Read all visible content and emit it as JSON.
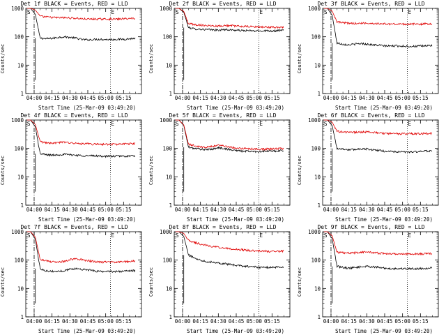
{
  "colors": {
    "events": "#000000",
    "lld": "#e00000",
    "axes": "#000000"
  },
  "common": {
    "ylabel": "Counts/sec",
    "xlabel": "Start Time (25-Mar-09 03:49:20)",
    "xticks": [
      "04:00",
      "04:15",
      "04:30",
      "04:45",
      "05:00",
      "05:15"
    ],
    "yticks": [
      "1",
      "10",
      "100",
      "1000"
    ],
    "marker_S": "S",
    "marker_E": "E"
  },
  "chart_data": [
    {
      "type": "line",
      "title": "Det 1f BLACK = Events, RED = LLD",
      "xlabel": "Start Time (25-Mar-09 03:49:20)",
      "ylabel": "Counts/sec",
      "xlim_minutes": [
        -7,
        90
      ],
      "ylim": [
        1,
        1000
      ],
      "yscale": "log",
      "x_minutes": [
        0,
        5,
        10,
        15,
        20,
        25,
        30,
        35,
        40,
        45,
        50,
        55,
        60,
        65,
        70,
        75,
        80,
        85
      ],
      "series": [
        {
          "name": "Events",
          "values": [
            1000,
            90,
            85,
            88,
            95,
            100,
            95,
            90,
            80,
            78,
            80,
            82,
            80,
            80,
            82,
            82,
            85,
            88
          ]
        },
        {
          "name": "LLD",
          "values": [
            1000,
            520,
            500,
            480,
            470,
            470,
            460,
            450,
            430,
            420,
            420,
            420,
            420,
            420,
            420,
            430,
            440,
            450
          ]
        }
      ],
      "start_minute": 0,
      "end_minute": 64
    },
    {
      "type": "line",
      "title": "Det 2f BLACK = Events, RED = LLD",
      "xlabel": "Start Time (25-Mar-09 03:49:20)",
      "ylabel": "Counts/sec",
      "xlim_minutes": [
        -7,
        90
      ],
      "ylim": [
        1,
        1000
      ],
      "yscale": "log",
      "x_minutes": [
        0,
        5,
        10,
        15,
        20,
        25,
        30,
        35,
        40,
        45,
        50,
        55,
        60,
        65,
        70,
        75,
        80,
        85
      ],
      "series": [
        {
          "name": "Events",
          "values": [
            1000,
            210,
            190,
            185,
            180,
            175,
            170,
            180,
            175,
            170,
            165,
            165,
            160,
            160,
            165,
            160,
            165,
            170
          ]
        },
        {
          "name": "LLD",
          "values": [
            1000,
            290,
            270,
            260,
            250,
            245,
            240,
            250,
            245,
            240,
            230,
            230,
            225,
            220,
            220,
            215,
            215,
            220
          ]
        }
      ],
      "start_minute": 0,
      "end_minute": 64
    },
    {
      "type": "line",
      "title": "Det 3f BLACK = Events, RED = LLD",
      "xlabel": "Start Time (25-Mar-09 03:49:20)",
      "ylabel": "Counts/sec",
      "xlim_minutes": [
        -7,
        90
      ],
      "ylim": [
        1,
        1000
      ],
      "yscale": "log",
      "x_minutes": [
        0,
        5,
        10,
        15,
        20,
        25,
        30,
        35,
        40,
        45,
        50,
        55,
        60,
        65,
        70,
        75,
        80,
        85
      ],
      "series": [
        {
          "name": "Events",
          "values": [
            1000,
            60,
            55,
            52,
            55,
            58,
            55,
            52,
            50,
            48,
            47,
            48,
            47,
            46,
            46,
            47,
            48,
            50
          ]
        },
        {
          "name": "LLD",
          "values": [
            1000,
            330,
            310,
            300,
            295,
            300,
            300,
            295,
            290,
            285,
            280,
            280,
            280,
            280,
            280,
            280,
            285,
            290
          ]
        }
      ],
      "start_minute": 0,
      "end_minute": 64
    },
    {
      "type": "line",
      "title": "Det 4f BLACK = Events, RED = LLD",
      "xlabel": "Start Time (25-Mar-09 03:49:20)",
      "ylabel": "Counts/sec",
      "xlim_minutes": [
        -7,
        90
      ],
      "ylim": [
        1,
        1000
      ],
      "yscale": "log",
      "x_minutes": [
        0,
        5,
        10,
        15,
        20,
        25,
        30,
        35,
        40,
        45,
        50,
        55,
        60,
        65,
        70,
        75,
        80,
        85
      ],
      "series": [
        {
          "name": "Events",
          "values": [
            1000,
            65,
            60,
            58,
            60,
            62,
            60,
            58,
            56,
            55,
            55,
            54,
            53,
            53,
            54,
            53,
            54,
            55
          ]
        },
        {
          "name": "LLD",
          "values": [
            1000,
            170,
            160,
            150,
            160,
            165,
            160,
            150,
            145,
            145,
            140,
            140,
            140,
            140,
            140,
            145,
            145,
            150
          ]
        }
      ],
      "start_minute": 0,
      "end_minute": 64
    },
    {
      "type": "line",
      "title": "Det 5f BLACK = Events, RED = LLD",
      "xlabel": "Start Time (25-Mar-09 03:49:20)",
      "ylabel": "Counts/sec",
      "xlim_minutes": [
        -7,
        90
      ],
      "ylim": [
        1,
        1000
      ],
      "yscale": "log",
      "x_minutes": [
        0,
        5,
        10,
        15,
        20,
        25,
        30,
        35,
        40,
        45,
        50,
        55,
        60,
        65,
        70,
        75,
        80,
        85
      ],
      "series": [
        {
          "name": "Events",
          "values": [
            1000,
            110,
            100,
            95,
            90,
            95,
            105,
            100,
            90,
            85,
            80,
            80,
            78,
            78,
            80,
            80,
            82,
            85
          ]
        },
        {
          "name": "LLD",
          "values": [
            1000,
            140,
            125,
            115,
            110,
            120,
            130,
            125,
            110,
            105,
            100,
            98,
            95,
            95,
            95,
            96,
            98,
            100
          ]
        }
      ],
      "start_minute": 0,
      "end_minute": 64
    },
    {
      "type": "line",
      "title": "Det 6f BLACK = Events, RED = LLD",
      "xlabel": "Start Time (25-Mar-09 03:49:20)",
      "ylabel": "Counts/sec",
      "xlim_minutes": [
        -7,
        90
      ],
      "ylim": [
        1,
        1000
      ],
      "yscale": "log",
      "x_minutes": [
        0,
        5,
        10,
        15,
        20,
        25,
        30,
        35,
        40,
        45,
        50,
        55,
        60,
        65,
        70,
        75,
        80,
        85
      ],
      "series": [
        {
          "name": "Events",
          "values": [
            1000,
            100,
            95,
            90,
            92,
            98,
            95,
            90,
            85,
            80,
            78,
            76,
            75,
            75,
            76,
            77,
            80,
            82
          ]
        },
        {
          "name": "LLD",
          "values": [
            1000,
            400,
            380,
            370,
            370,
            380,
            380,
            370,
            350,
            340,
            330,
            330,
            330,
            330,
            330,
            330,
            335,
            340
          ]
        }
      ],
      "start_minute": 0,
      "end_minute": 64
    },
    {
      "type": "line",
      "title": "Det 7f BLACK = Events, RED = LLD",
      "xlabel": "Start Time (25-Mar-09 03:49:20)",
      "ylabel": "Counts/sec",
      "xlim_minutes": [
        -7,
        90
      ],
      "ylim": [
        1,
        1000
      ],
      "yscale": "log",
      "x_minutes": [
        0,
        5,
        10,
        15,
        20,
        25,
        30,
        35,
        40,
        45,
        50,
        55,
        60,
        65,
        70,
        75,
        80,
        85
      ],
      "series": [
        {
          "name": "Events",
          "values": [
            1000,
            50,
            42,
            40,
            40,
            42,
            48,
            50,
            48,
            45,
            42,
            40,
            40,
            40,
            40,
            40,
            42,
            42
          ]
        },
        {
          "name": "LLD",
          "values": [
            1000,
            110,
            95,
            85,
            85,
            90,
            105,
            110,
            105,
            95,
            90,
            85,
            85,
            85,
            85,
            88,
            90,
            95
          ]
        }
      ],
      "start_minute": 0,
      "end_minute": 64
    },
    {
      "type": "line",
      "title": "Det 8f BLACK = Events, RED = LLD",
      "xlabel": "Start Time (25-Mar-09 03:49:20)",
      "ylabel": "Counts/sec",
      "xlim_minutes": [
        -7,
        90
      ],
      "ylim": [
        1,
        1000
      ],
      "yscale": "log",
      "x_minutes": [
        0,
        5,
        10,
        15,
        20,
        25,
        30,
        35,
        40,
        45,
        50,
        55,
        60,
        65,
        70,
        75,
        80,
        85
      ],
      "series": [
        {
          "name": "Events",
          "values": [
            1000,
            150,
            120,
            100,
            90,
            85,
            80,
            75,
            70,
            65,
            62,
            60,
            58,
            55,
            55,
            55,
            57,
            58
          ]
        },
        {
          "name": "LLD",
          "values": [
            1000,
            500,
            420,
            370,
            330,
            300,
            280,
            270,
            250,
            240,
            230,
            220,
            215,
            210,
            205,
            200,
            205,
            210
          ]
        }
      ],
      "start_minute": 0,
      "end_minute": 64
    },
    {
      "type": "line",
      "title": "Det 9f BLACK = Events, RED = LLD",
      "xlabel": "Start Time (25-Mar-09 03:49:20)",
      "ylabel": "Counts/sec",
      "xlim_minutes": [
        -7,
        90
      ],
      "ylim": [
        1,
        1000
      ],
      "yscale": "log",
      "x_minutes": [
        0,
        5,
        10,
        15,
        20,
        25,
        30,
        35,
        40,
        45,
        50,
        55,
        60,
        65,
        70,
        75,
        80,
        85
      ],
      "series": [
        {
          "name": "Events",
          "values": [
            1000,
            60,
            55,
            52,
            55,
            58,
            60,
            58,
            55,
            52,
            50,
            50,
            50,
            50,
            50,
            50,
            52,
            54
          ]
        },
        {
          "name": "LLD",
          "values": [
            1000,
            190,
            180,
            175,
            180,
            190,
            195,
            185,
            175,
            170,
            165,
            165,
            165,
            165,
            165,
            165,
            168,
            170
          ]
        }
      ],
      "start_minute": 0,
      "end_minute": 64
    }
  ]
}
